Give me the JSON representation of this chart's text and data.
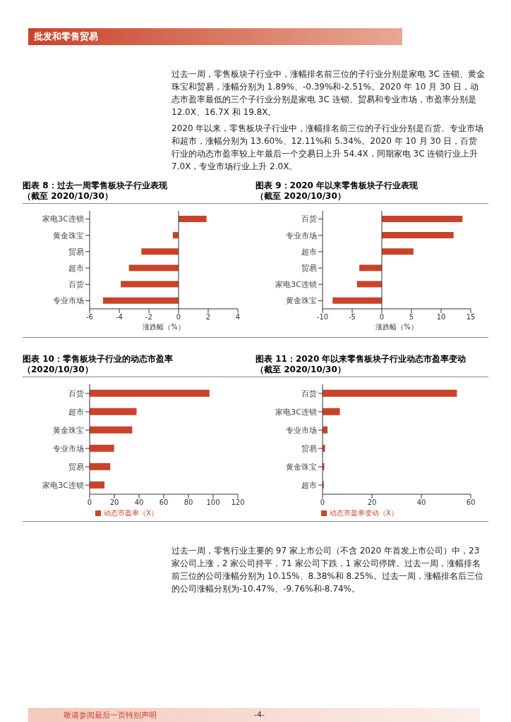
{
  "chart_data": [
    {
      "type": "other",
      "title": "批发和零售贸易",
      "annotations": [
        "过去一周，零售板块子行业中，涨幅排名前三位的子行业分别是家电 3C 连锁、黄金珠宝和贸易，涨幅分别为 1.89%、-0.39%和-2.51%。2020 年 10 月 30 日，动态市盈率最低的三个子行业分别是家电 3C 连锁、贸易和专业市场，市盈率分别是 12.0X、16.7X 和 19.8X。",
        "2020 年以来，零售板块子行业中，涨幅排名前三位的子行业分别是百货、专业市场和超市，涨幅分别为 13.60%、12.11%和 5.34%。2020 年 10 月 30 日，百货行业的动态市盈率较上年最后一个交易日上升 54.4X，同期家电 3C 连锁行业上升 7.0X，专业市场行业上升 2.0X。"
      ]
    },
    {
      "type": "bar",
      "orientation": "horizontal",
      "title": "图表 8：过去一周零售板块子行业表现",
      "subtitle": "（截至 2020/10/30）",
      "xlabel": "涨跌幅（%）",
      "categories": [
        "家电3C连锁",
        "黄金珠宝",
        "贸易",
        "超市",
        "百货",
        "专业市场"
      ],
      "series": [
        {
          "color": "#c9432a",
          "values": [
            1.89,
            -0.39,
            -2.51,
            -3.35,
            -3.9,
            -5.1
          ]
        }
      ],
      "xlim": [
        -6,
        4
      ],
      "xticks": [
        -6,
        -4,
        -2,
        0,
        2,
        4
      ]
    },
    {
      "type": "bar",
      "orientation": "horizontal",
      "title": "图表 9：2020 年以来零售板块子行业表现",
      "subtitle": "（截至 2020/10/30）",
      "xlabel": "涨跌幅（%）",
      "categories": [
        "百货",
        "专业市场",
        "超市",
        "贸易",
        "家电3C连锁",
        "黄金珠宝"
      ],
      "series": [
        {
          "color": "#c9432a",
          "values": [
            13.6,
            12.11,
            5.34,
            -3.8,
            -4.2,
            -8.3
          ]
        }
      ],
      "xlim": [
        -10,
        15
      ],
      "xticks": [
        -10,
        -5,
        0,
        5,
        10,
        15
      ]
    },
    {
      "type": "bar",
      "orientation": "horizontal",
      "title": "图表 10：零售板块子行业的动态市盈率",
      "subtitle": "（2020/10/30）",
      "categories": [
        "百货",
        "超市",
        "黄金珠宝",
        "专业市场",
        "贸易",
        "家电3C连锁"
      ],
      "series": [
        {
          "name": "动态市盈率（X）",
          "color": "#c9432a",
          "values": [
            97,
            38,
            34.5,
            19.8,
            16.7,
            12.0
          ]
        }
      ],
      "xlim": [
        0,
        120
      ],
      "xticks": [
        0,
        20,
        40,
        60,
        80,
        100,
        120
      ],
      "legend": "bottom"
    },
    {
      "type": "bar",
      "orientation": "horizontal",
      "title": "图表 11：2020 年以来零售板块子行业动态市盈率变动",
      "subtitle": "（截至 2020/10/30）",
      "categories": [
        "百货",
        "家电3C连锁",
        "专业市场",
        "贸易",
        "黄金珠宝",
        "超市"
      ],
      "series": [
        {
          "name": "动态市盈率变动（X）",
          "color": "#c9432a",
          "values": [
            54.4,
            7.0,
            2.0,
            1.0,
            0.7,
            0.5
          ]
        }
      ],
      "xlim": [
        0,
        60
      ],
      "xticks": [
        0,
        20,
        40,
        60
      ],
      "legend": "bottom"
    },
    {
      "type": "other",
      "annotations": [
        "过去一周，零售行业主要的 97 家上市公司（不含 2020 年首发上市公司）中，23 家公司上涨，2 家公司持平，71 家公司下跌，1 家公司停牌。过去一周，涨幅排名前三位的公司涨幅分别为 10.15%、8.38%和 8.25%。过去一周，涨幅排名后三位的公司涨幅分别为-10.47%、-9.76%和-8.74%。",
        "敬请参阅最后一页特别声明",
        "-4-"
      ]
    }
  ]
}
